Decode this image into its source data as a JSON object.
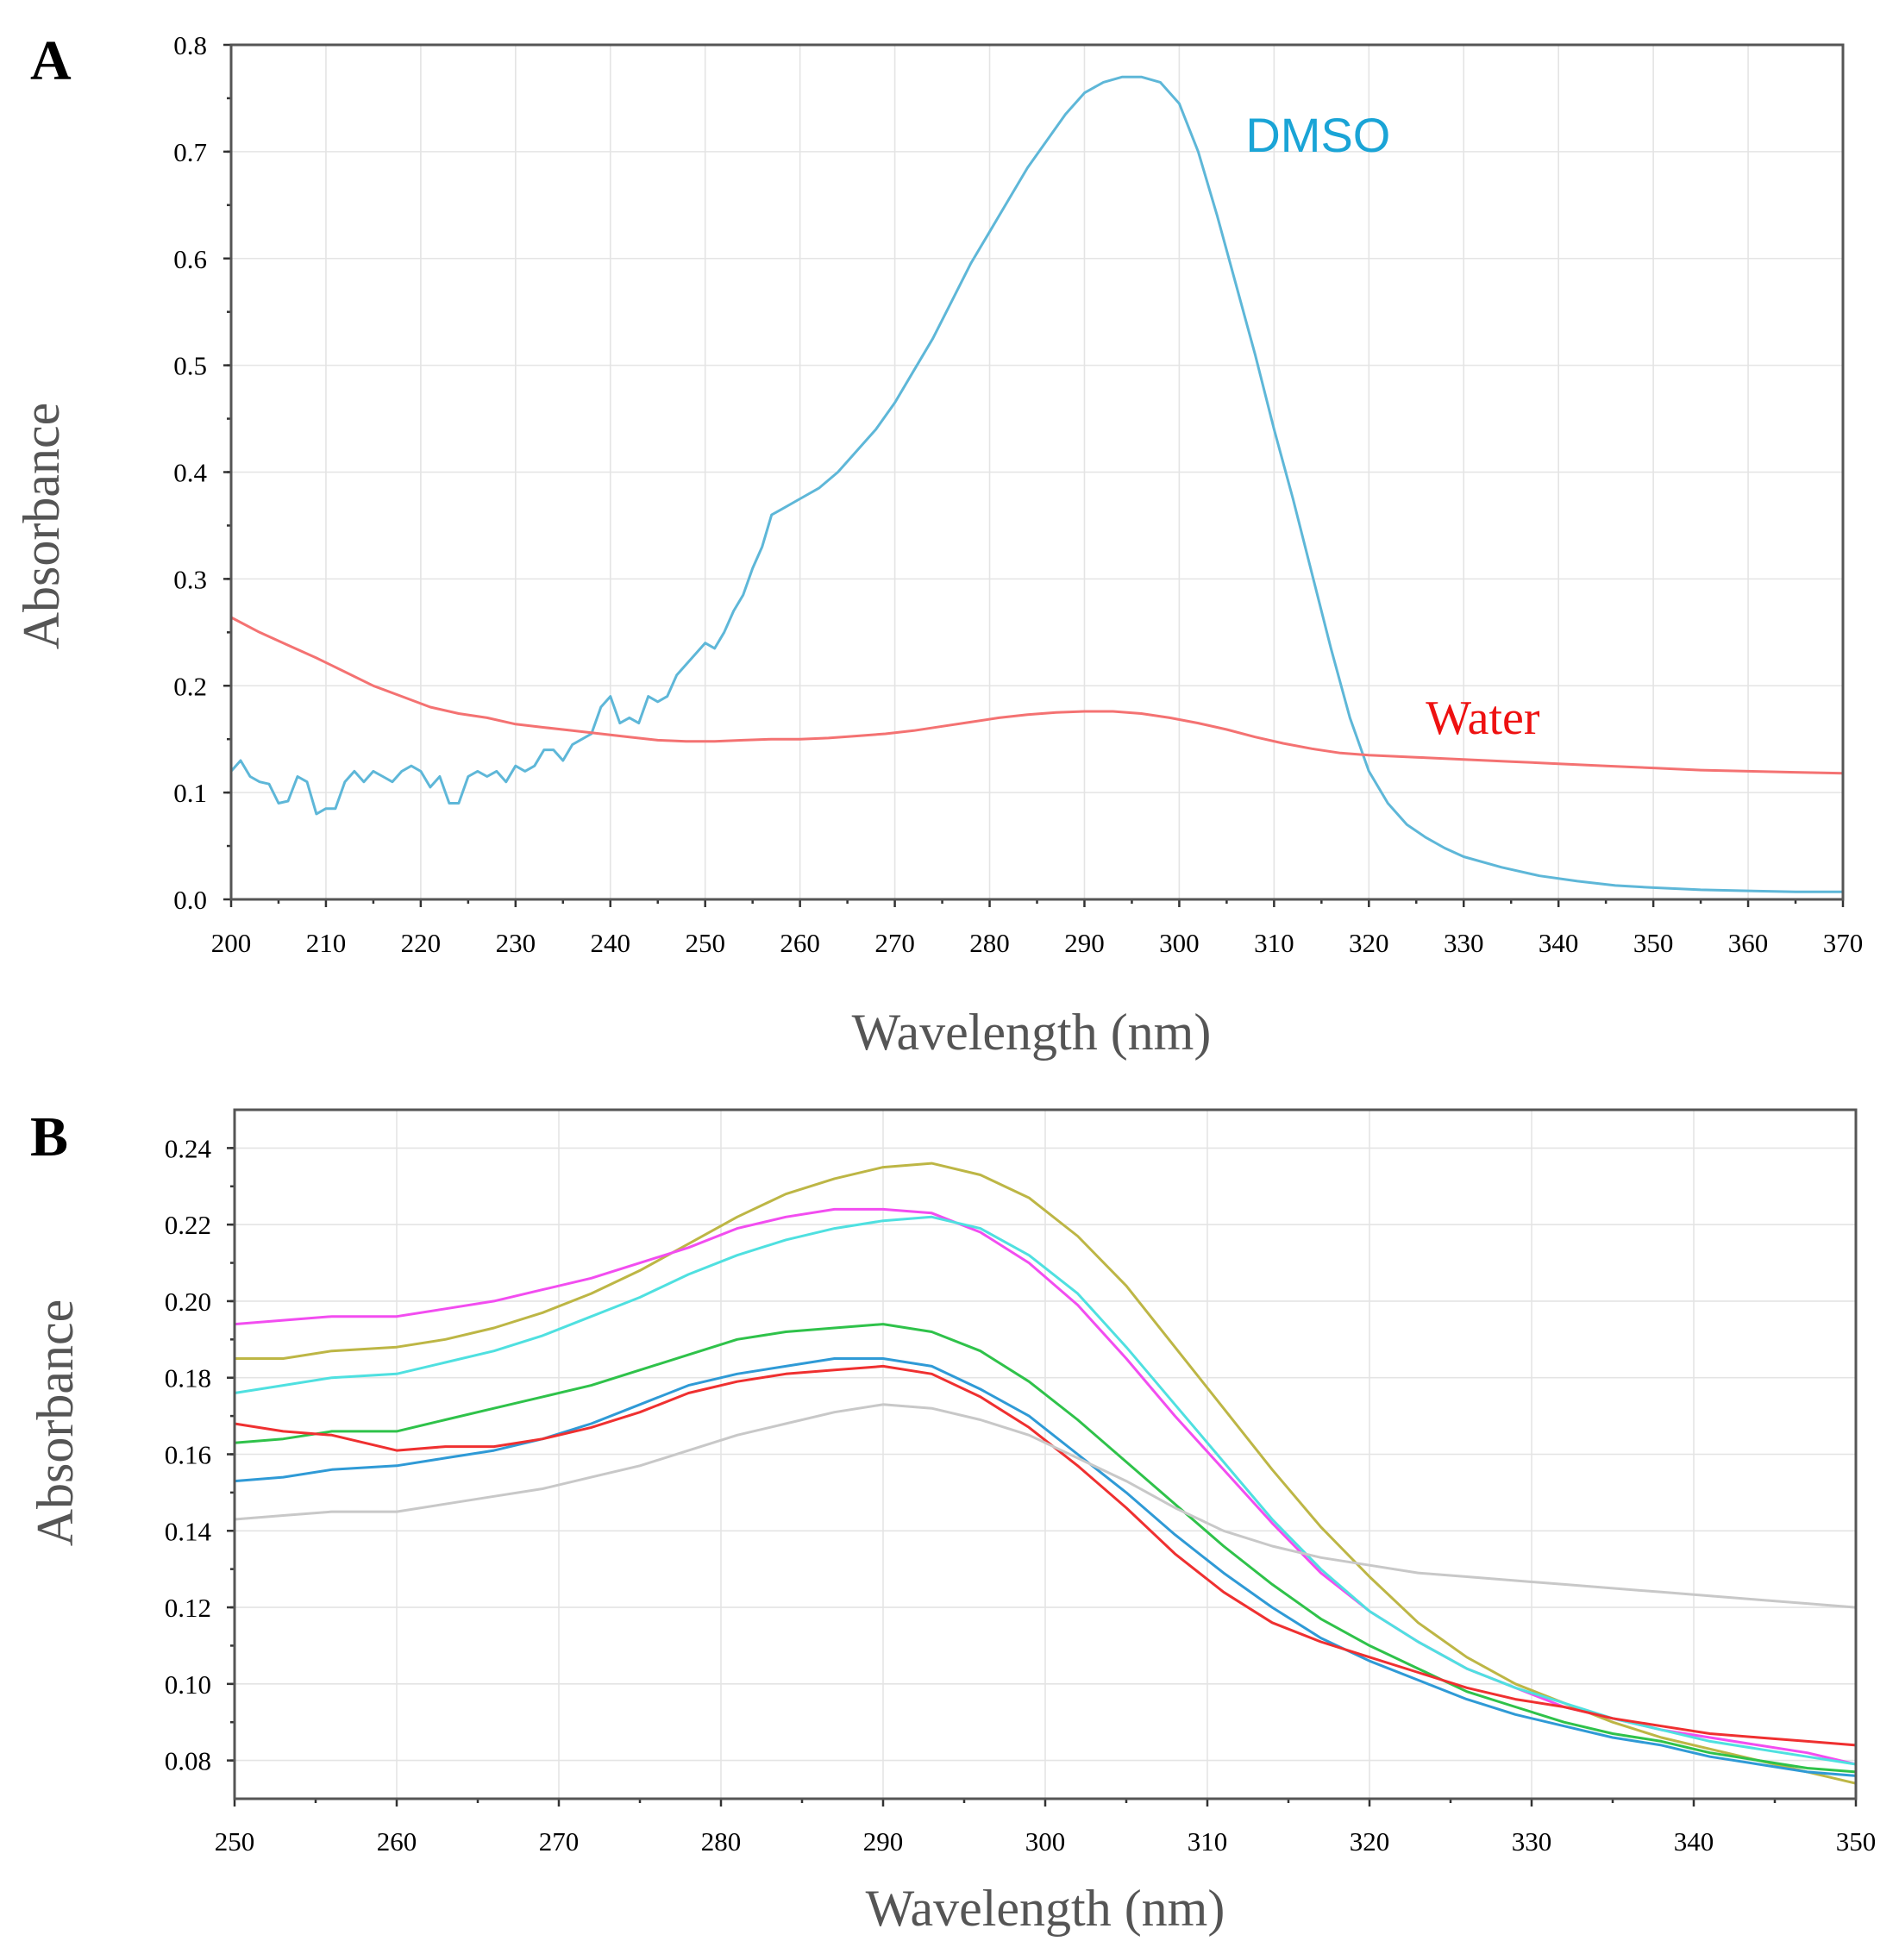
{
  "chart_data": [
    {
      "panel": "A",
      "type": "line",
      "xlabel": "Wavelength (nm)",
      "ylabel": "Absorbance",
      "xlim": [
        200,
        370
      ],
      "ylim": [
        0.0,
        0.8
      ],
      "xticks": [
        200,
        210,
        220,
        230,
        240,
        250,
        260,
        270,
        280,
        290,
        300,
        310,
        320,
        330,
        340,
        350,
        360,
        370
      ],
      "yticks": [
        0.0,
        0.1,
        0.2,
        0.3,
        0.4,
        0.5,
        0.6,
        0.7,
        0.8
      ],
      "ytick_labels": [
        "0.0",
        "0.1",
        "0.2",
        "0.3",
        "0.4",
        "0.5",
        "0.6",
        "0.7",
        "0.8"
      ],
      "grid": true,
      "annotations": [
        {
          "text": "DMSO",
          "x": 307,
          "y": 0.7,
          "color": "#1aa4d6"
        },
        {
          "text": "Water",
          "x": 326,
          "y": 0.155,
          "color": "#ee1111"
        }
      ],
      "series": [
        {
          "name": "DMSO",
          "color": "#5eb7d8",
          "x": [
            200,
            201,
            202,
            203,
            204,
            205,
            206,
            207,
            208,
            209,
            210,
            211,
            212,
            213,
            214,
            215,
            216,
            217,
            218,
            219,
            220,
            221,
            222,
            223,
            224,
            225,
            226,
            227,
            228,
            229,
            230,
            231,
            232,
            233,
            234,
            235,
            236,
            237,
            238,
            239,
            240,
            241,
            242,
            243,
            244,
            245,
            246,
            247,
            248,
            249,
            250,
            251,
            252,
            253,
            254,
            255,
            256,
            257,
            258,
            260,
            262,
            264,
            266,
            268,
            270,
            272,
            274,
            276,
            278,
            280,
            282,
            284,
            286,
            288,
            290,
            292,
            294,
            296,
            298,
            300,
            302,
            304,
            306,
            308,
            310,
            312,
            314,
            316,
            318,
            320,
            322,
            324,
            326,
            328,
            330,
            334,
            338,
            342,
            346,
            350,
            355,
            360,
            365,
            370
          ],
          "y": [
            0.12,
            0.13,
            0.115,
            0.11,
            0.108,
            0.09,
            0.092,
            0.115,
            0.11,
            0.08,
            0.085,
            0.085,
            0.11,
            0.12,
            0.11,
            0.12,
            0.115,
            0.11,
            0.12,
            0.125,
            0.12,
            0.105,
            0.115,
            0.09,
            0.09,
            0.115,
            0.12,
            0.115,
            0.12,
            0.11,
            0.125,
            0.12,
            0.125,
            0.14,
            0.14,
            0.13,
            0.145,
            0.15,
            0.155,
            0.18,
            0.19,
            0.165,
            0.17,
            0.165,
            0.19,
            0.185,
            0.19,
            0.21,
            0.22,
            0.23,
            0.24,
            0.235,
            0.25,
            0.27,
            0.285,
            0.31,
            0.33,
            0.36,
            0.365,
            0.375,
            0.385,
            0.4,
            0.42,
            0.44,
            0.465,
            0.495,
            0.525,
            0.56,
            0.595,
            0.625,
            0.655,
            0.685,
            0.71,
            0.735,
            0.755,
            0.765,
            0.77,
            0.77,
            0.765,
            0.745,
            0.7,
            0.64,
            0.575,
            0.51,
            0.44,
            0.375,
            0.305,
            0.235,
            0.17,
            0.12,
            0.09,
            0.07,
            0.058,
            0.048,
            0.04,
            0.03,
            0.022,
            0.017,
            0.013,
            0.011,
            0.009,
            0.008,
            0.007,
            0.007
          ]
        },
        {
          "name": "Water",
          "color": "#f47272",
          "x": [
            200,
            203,
            206,
            209,
            212,
            215,
            218,
            221,
            224,
            227,
            230,
            233,
            236,
            239,
            242,
            245,
            248,
            251,
            254,
            257,
            260,
            263,
            266,
            269,
            272,
            275,
            278,
            281,
            284,
            287,
            290,
            293,
            296,
            299,
            302,
            305,
            308,
            311,
            314,
            317,
            320,
            325,
            330,
            335,
            340,
            345,
            350,
            355,
            360,
            365,
            370
          ],
          "y": [
            0.264,
            0.25,
            0.238,
            0.226,
            0.213,
            0.2,
            0.19,
            0.18,
            0.174,
            0.17,
            0.164,
            0.161,
            0.158,
            0.155,
            0.152,
            0.149,
            0.148,
            0.148,
            0.149,
            0.15,
            0.15,
            0.151,
            0.153,
            0.155,
            0.158,
            0.162,
            0.166,
            0.17,
            0.173,
            0.175,
            0.176,
            0.176,
            0.174,
            0.17,
            0.165,
            0.159,
            0.152,
            0.146,
            0.141,
            0.137,
            0.135,
            0.133,
            0.131,
            0.129,
            0.127,
            0.125,
            0.123,
            0.121,
            0.12,
            0.119,
            0.118
          ]
        }
      ]
    },
    {
      "panel": "B",
      "type": "line",
      "xlabel": "Wavelength (nm)",
      "ylabel": "Absorbance",
      "xlim": [
        250,
        350
      ],
      "ylim": [
        0.07,
        0.25
      ],
      "xticks": [
        250,
        260,
        270,
        280,
        290,
        300,
        310,
        320,
        330,
        340,
        350
      ],
      "yticks": [
        0.08,
        0.1,
        0.12,
        0.14,
        0.16,
        0.18,
        0.2,
        0.22,
        0.24
      ],
      "ytick_labels": [
        "0.08",
        "0.10",
        "0.12",
        "0.14",
        "0.16",
        "0.18",
        "0.20",
        "0.22",
        "0.24"
      ],
      "grid": true,
      "series": [
        {
          "name": "olive",
          "color": "#bdb645",
          "x": [
            250,
            253,
            256,
            260,
            263,
            266,
            269,
            272,
            275,
            278,
            281,
            284,
            287,
            290,
            293,
            296,
            299,
            302,
            305,
            308,
            311,
            314,
            317,
            320,
            323,
            326,
            329,
            332,
            335,
            338,
            341,
            344,
            347,
            350
          ],
          "y": [
            0.185,
            0.185,
            0.187,
            0.188,
            0.19,
            0.193,
            0.197,
            0.202,
            0.208,
            0.215,
            0.222,
            0.228,
            0.232,
            0.235,
            0.236,
            0.233,
            0.227,
            0.217,
            0.204,
            0.188,
            0.172,
            0.156,
            0.141,
            0.128,
            0.116,
            0.107,
            0.1,
            0.095,
            0.09,
            0.086,
            0.083,
            0.08,
            0.077,
            0.074
          ]
        },
        {
          "name": "magenta",
          "color": "#f24df0",
          "x": [
            250,
            253,
            256,
            260,
            263,
            266,
            269,
            272,
            275,
            278,
            281,
            284,
            287,
            290,
            293,
            296,
            299,
            302,
            305,
            308,
            311,
            314,
            317,
            320,
            323,
            326,
            329,
            332,
            335,
            338,
            341,
            344,
            347,
            350
          ],
          "y": [
            0.194,
            0.195,
            0.196,
            0.196,
            0.198,
            0.2,
            0.203,
            0.206,
            0.21,
            0.214,
            0.219,
            0.222,
            0.224,
            0.224,
            0.223,
            0.218,
            0.21,
            0.199,
            0.185,
            0.17,
            0.156,
            0.142,
            0.129,
            0.119,
            0.111,
            0.104,
            0.099,
            0.094,
            0.091,
            0.088,
            0.086,
            0.084,
            0.082,
            0.079
          ]
        },
        {
          "name": "cyan",
          "color": "#4fe0e0",
          "x": [
            250,
            253,
            256,
            260,
            263,
            266,
            269,
            272,
            275,
            278,
            281,
            284,
            287,
            290,
            293,
            296,
            299,
            302,
            305,
            308,
            311,
            314,
            317,
            320,
            323,
            326,
            329,
            332,
            335,
            338,
            341,
            344,
            347,
            350
          ],
          "y": [
            0.176,
            0.178,
            0.18,
            0.181,
            0.184,
            0.187,
            0.191,
            0.196,
            0.201,
            0.207,
            0.212,
            0.216,
            0.219,
            0.221,
            0.222,
            0.219,
            0.212,
            0.202,
            0.188,
            0.173,
            0.158,
            0.143,
            0.13,
            0.119,
            0.111,
            0.104,
            0.099,
            0.095,
            0.091,
            0.088,
            0.085,
            0.083,
            0.081,
            0.079
          ]
        },
        {
          "name": "green",
          "color": "#2fc24a",
          "x": [
            250,
            253,
            256,
            260,
            263,
            266,
            269,
            272,
            275,
            278,
            281,
            284,
            287,
            290,
            293,
            296,
            299,
            302,
            305,
            308,
            311,
            314,
            317,
            320,
            323,
            326,
            329,
            332,
            335,
            338,
            341,
            344,
            347,
            350
          ],
          "y": [
            0.163,
            0.164,
            0.166,
            0.166,
            0.169,
            0.172,
            0.175,
            0.178,
            0.182,
            0.186,
            0.19,
            0.192,
            0.193,
            0.194,
            0.192,
            0.187,
            0.179,
            0.169,
            0.158,
            0.147,
            0.136,
            0.126,
            0.117,
            0.11,
            0.104,
            0.098,
            0.094,
            0.09,
            0.087,
            0.085,
            0.082,
            0.08,
            0.078,
            0.077
          ]
        },
        {
          "name": "blue",
          "color": "#2f9ad6",
          "x": [
            250,
            253,
            256,
            260,
            263,
            266,
            269,
            272,
            275,
            278,
            281,
            284,
            287,
            290,
            293,
            296,
            299,
            302,
            305,
            308,
            311,
            314,
            317,
            320,
            323,
            326,
            329,
            332,
            335,
            338,
            341,
            344,
            347,
            350
          ],
          "y": [
            0.153,
            0.154,
            0.156,
            0.157,
            0.159,
            0.161,
            0.164,
            0.168,
            0.173,
            0.178,
            0.181,
            0.183,
            0.185,
            0.185,
            0.183,
            0.177,
            0.17,
            0.16,
            0.15,
            0.139,
            0.129,
            0.12,
            0.112,
            0.106,
            0.101,
            0.096,
            0.092,
            0.089,
            0.086,
            0.084,
            0.081,
            0.079,
            0.077,
            0.076
          ]
        },
        {
          "name": "red",
          "color": "#ef3030",
          "x": [
            250,
            253,
            256,
            260,
            263,
            266,
            269,
            272,
            275,
            278,
            281,
            284,
            287,
            290,
            293,
            296,
            299,
            302,
            305,
            308,
            311,
            314,
            317,
            320,
            323,
            326,
            329,
            332,
            335,
            338,
            341,
            344,
            347,
            350
          ],
          "y": [
            0.168,
            0.166,
            0.165,
            0.161,
            0.162,
            0.162,
            0.164,
            0.167,
            0.171,
            0.176,
            0.179,
            0.181,
            0.182,
            0.183,
            0.181,
            0.175,
            0.167,
            0.157,
            0.146,
            0.134,
            0.124,
            0.116,
            0.111,
            0.107,
            0.103,
            0.099,
            0.096,
            0.094,
            0.091,
            0.089,
            0.087,
            0.086,
            0.085,
            0.084
          ]
        },
        {
          "name": "gray",
          "color": "#c8c8c8",
          "x": [
            250,
            253,
            256,
            260,
            263,
            266,
            269,
            272,
            275,
            278,
            281,
            284,
            287,
            290,
            293,
            296,
            299,
            302,
            305,
            308,
            311,
            314,
            317,
            320,
            323,
            326,
            329,
            332,
            335,
            338,
            341,
            344,
            347,
            350
          ],
          "y": [
            0.143,
            0.144,
            0.145,
            0.145,
            0.147,
            0.149,
            0.151,
            0.154,
            0.157,
            0.161,
            0.165,
            0.168,
            0.171,
            0.173,
            0.172,
            0.169,
            0.165,
            0.159,
            0.153,
            0.146,
            0.14,
            0.136,
            0.133,
            0.131,
            0.129,
            0.128,
            0.127,
            0.126,
            0.125,
            0.124,
            0.123,
            0.122,
            0.121,
            0.12
          ]
        }
      ]
    }
  ]
}
